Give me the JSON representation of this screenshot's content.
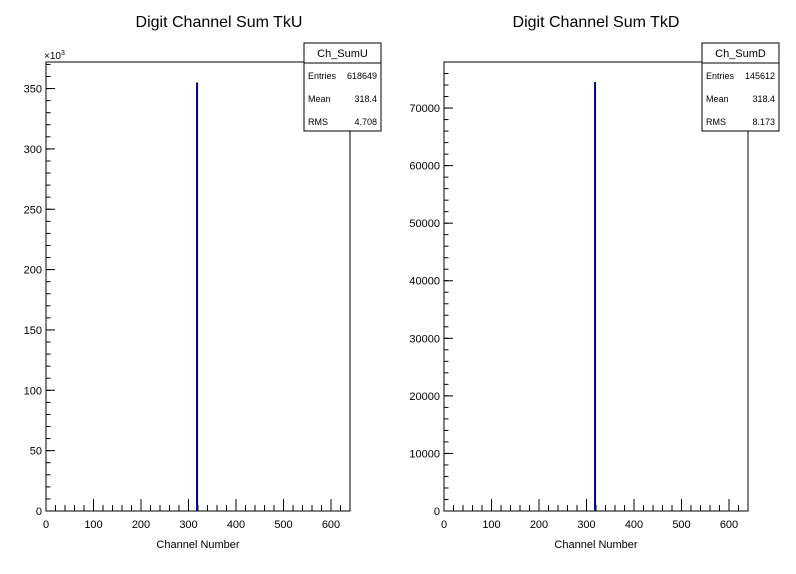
{
  "chart_data": [
    {
      "type": "bar",
      "title": "Digit Channel Sum TkU",
      "xlabel": "Channel Number",
      "ylabel": "",
      "xlim": [
        0,
        640
      ],
      "ylim": [
        0,
        372000
      ],
      "x_ticks": [
        "0",
        "100",
        "200",
        "300",
        "400",
        "500",
        "600"
      ],
      "y_ticks": [
        "0",
        "50",
        "100",
        "150",
        "200",
        "250",
        "300",
        "350"
      ],
      "y_multiplier": "×10",
      "y_multiplier_exp": "3",
      "grid": false,
      "series": [
        {
          "x": [
            318
          ],
          "values": [
            355000
          ]
        }
      ],
      "series_color": "#000080",
      "stats": {
        "name": "Ch_SumU",
        "rows": [
          {
            "label": "Entries",
            "value": "618649"
          },
          {
            "label": "Mean",
            "value": "318.4"
          },
          {
            "label": "RMS",
            "value": "4.708"
          }
        ]
      }
    },
    {
      "type": "bar",
      "title": "Digit Channel Sum TkD",
      "xlabel": "Channel Number",
      "ylabel": "",
      "xlim": [
        0,
        640
      ],
      "ylim": [
        0,
        78000
      ],
      "x_ticks": [
        "0",
        "100",
        "200",
        "300",
        "400",
        "500",
        "600"
      ],
      "y_ticks": [
        "0",
        "10000",
        "20000",
        "30000",
        "40000",
        "50000",
        "60000",
        "70000"
      ],
      "grid": false,
      "series": [
        {
          "x": [
            318
          ],
          "values": [
            74500
          ]
        }
      ],
      "series_color": "#000080",
      "stats": {
        "name": "Ch_SumD",
        "rows": [
          {
            "label": "Entries",
            "value": "145612"
          },
          {
            "label": "Mean",
            "value": "318.4"
          },
          {
            "label": "RMS",
            "value": "8.173"
          }
        ]
      }
    }
  ]
}
